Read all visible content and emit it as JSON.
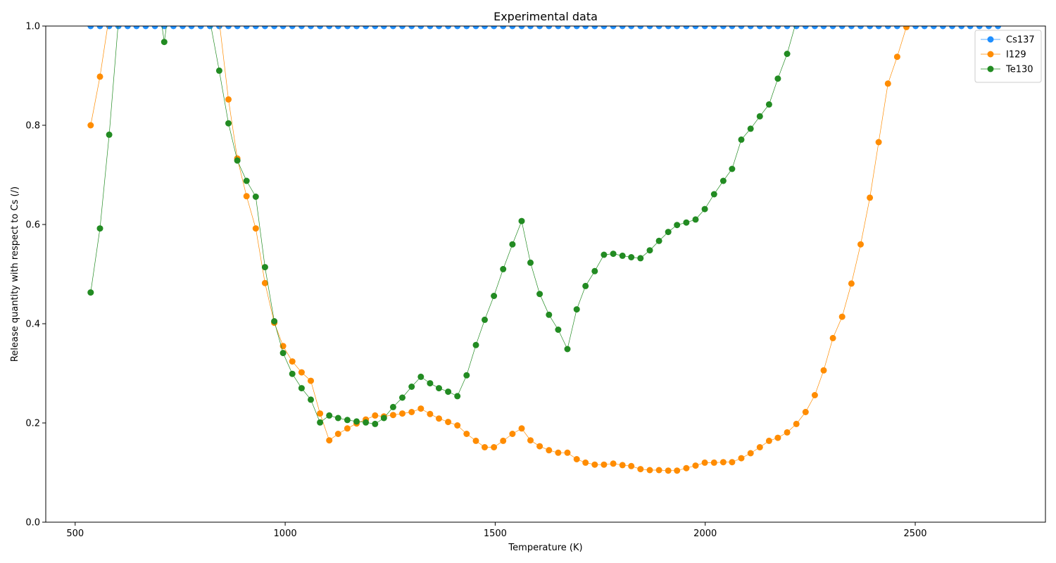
{
  "chart_data": {
    "type": "line",
    "title": "Experimental data",
    "xlabel": "Temperature (K)",
    "ylabel": "Release quantity with respect to Cs (/)",
    "xlim": [
      430,
      2810
    ],
    "ylim": [
      0,
      1.0
    ],
    "x_ticks": [
      500,
      1000,
      1500,
      2000,
      2500
    ],
    "x_tick_labels": [
      "500",
      "1000",
      "1500",
      "2000",
      "2500"
    ],
    "y_ticks": [
      0,
      0.2,
      0.4,
      0.6,
      0.8,
      1.0
    ],
    "y_tick_labels": [
      "0.0",
      "0.2",
      "0.4",
      "0.6",
      "0.8",
      "1.0"
    ],
    "grid": false,
    "legend_position": "top-right",
    "series": [
      {
        "name": "Cs137",
        "color": "#1f8fff",
        "x": [
          537,
          559,
          581,
          603,
          625,
          646,
          668,
          690,
          712,
          734,
          756,
          777,
          799,
          821,
          843,
          865,
          886,
          908,
          930,
          952,
          974,
          995,
          1017,
          1039,
          1061,
          1083,
          1105,
          1126,
          1148,
          1170,
          1192,
          1214,
          1235,
          1257,
          1279,
          1301,
          1323,
          1345,
          1366,
          1388,
          1410,
          1432,
          1454,
          1475,
          1497,
          1519,
          1541,
          1563,
          1584,
          1606,
          1628,
          1650,
          1672,
          1694,
          1715,
          1737,
          1759,
          1781,
          1803,
          1824,
          1846,
          1868,
          1890,
          1912,
          1933,
          1955,
          1977,
          1999,
          2021,
          2043,
          2064,
          2086,
          2108,
          2130,
          2152,
          2173,
          2195,
          2217,
          2239,
          2261,
          2282,
          2304,
          2326,
          2348,
          2370,
          2392,
          2413,
          2435,
          2457,
          2479,
          2501,
          2522,
          2544,
          2566,
          2588,
          2610,
          2631,
          2653,
          2675,
          2697
        ],
        "y": [
          1.0,
          1.0,
          1.0,
          1.0,
          1.0,
          1.0,
          1.0,
          1.0,
          1.0,
          1.0,
          1.0,
          1.0,
          1.0,
          1.0,
          1.0,
          1.0,
          1.0,
          1.0,
          1.0,
          1.0,
          1.0,
          1.0,
          1.0,
          1.0,
          1.0,
          1.0,
          1.0,
          1.0,
          1.0,
          1.0,
          1.0,
          1.0,
          1.0,
          1.0,
          1.0,
          1.0,
          1.0,
          1.0,
          1.0,
          1.0,
          1.0,
          1.0,
          1.0,
          1.0,
          1.0,
          1.0,
          1.0,
          1.0,
          1.0,
          1.0,
          1.0,
          1.0,
          1.0,
          1.0,
          1.0,
          1.0,
          1.0,
          1.0,
          1.0,
          1.0,
          1.0,
          1.0,
          1.0,
          1.0,
          1.0,
          1.0,
          1.0,
          1.0,
          1.0,
          1.0,
          1.0,
          1.0,
          1.0,
          1.0,
          1.0,
          1.0,
          1.0,
          1.0,
          1.0,
          1.0,
          1.0,
          1.0,
          1.0,
          1.0,
          1.0,
          1.0,
          1.0,
          1.0,
          1.0,
          1.0,
          1.0,
          1.0,
          1.0,
          1.0,
          1.0,
          1.0,
          1.0,
          1.0,
          1.0,
          1.0
        ]
      },
      {
        "name": "I129",
        "color": "#ff8c00",
        "x": [
          537,
          559,
          581,
          603,
          625,
          646,
          668,
          690,
          712,
          734,
          756,
          777,
          799,
          821,
          843,
          865,
          886,
          908,
          930,
          952,
          974,
          995,
          1017,
          1039,
          1061,
          1083,
          1105,
          1126,
          1148,
          1170,
          1192,
          1214,
          1235,
          1257,
          1279,
          1301,
          1323,
          1345,
          1366,
          1388,
          1410,
          1432,
          1454,
          1475,
          1497,
          1519,
          1541,
          1563,
          1584,
          1606,
          1628,
          1650,
          1672,
          1694,
          1715,
          1737,
          1759,
          1781,
          1803,
          1824,
          1846,
          1868,
          1890,
          1912,
          1933,
          1955,
          1977,
          1999,
          2021,
          2043,
          2064,
          2086,
          2108,
          2130,
          2152,
          2173,
          2195,
          2217,
          2239,
          2261,
          2282,
          2304,
          2326,
          2348,
          2370,
          2392,
          2413,
          2435,
          2457,
          2479
        ],
        "y": [
          0.8,
          0.898,
          1.02,
          1.1,
          1.1,
          1.1,
          1.1,
          1.1,
          1.1,
          1.1,
          1.1,
          1.1,
          1.1,
          1.1,
          1.01,
          0.852,
          0.733,
          0.657,
          0.592,
          0.482,
          0.402,
          0.355,
          0.324,
          0.302,
          0.285,
          0.219,
          0.165,
          0.178,
          0.189,
          0.199,
          0.207,
          0.215,
          0.213,
          0.216,
          0.219,
          0.222,
          0.229,
          0.218,
          0.209,
          0.202,
          0.195,
          0.178,
          0.164,
          0.151,
          0.151,
          0.164,
          0.178,
          0.189,
          0.165,
          0.153,
          0.145,
          0.14,
          0.14,
          0.127,
          0.12,
          0.116,
          0.116,
          0.118,
          0.115,
          0.113,
          0.107,
          0.105,
          0.105,
          0.104,
          0.104,
          0.109,
          0.114,
          0.12,
          0.12,
          0.121,
          0.121,
          0.129,
          0.139,
          0.151,
          0.164,
          0.17,
          0.181,
          0.198,
          0.222,
          0.256,
          0.306,
          0.371,
          0.414,
          0.481,
          0.56,
          0.654,
          0.766,
          0.884,
          0.938,
          0.998
        ]
      },
      {
        "name": "Te130",
        "color": "#228b22",
        "x": [
          537,
          559,
          581,
          603,
          625,
          646,
          668,
          690,
          712,
          734,
          756,
          777,
          799,
          821,
          843,
          865,
          886,
          908,
          930,
          952,
          974,
          995,
          1017,
          1039,
          1061,
          1083,
          1105,
          1126,
          1148,
          1170,
          1192,
          1214,
          1235,
          1257,
          1279,
          1301,
          1323,
          1345,
          1366,
          1388,
          1410,
          1432,
          1454,
          1475,
          1497,
          1519,
          1541,
          1563,
          1584,
          1606,
          1628,
          1650,
          1672,
          1694,
          1715,
          1737,
          1759,
          1781,
          1803,
          1824,
          1846,
          1868,
          1890,
          1912,
          1933,
          1955,
          1977,
          1999,
          2021,
          2043,
          2064,
          2086,
          2108,
          2130,
          2152,
          2173,
          2195,
          2217
        ],
        "y": [
          0.463,
          0.592,
          0.781,
          1.01,
          1.1,
          1.1,
          1.1,
          1.1,
          0.968,
          1.1,
          1.1,
          1.1,
          1.1,
          1.01,
          0.91,
          0.804,
          0.729,
          0.688,
          0.656,
          0.514,
          0.405,
          0.341,
          0.299,
          0.27,
          0.247,
          0.201,
          0.215,
          0.21,
          0.206,
          0.203,
          0.201,
          0.198,
          0.21,
          0.232,
          0.251,
          0.273,
          0.293,
          0.28,
          0.27,
          0.263,
          0.254,
          0.296,
          0.357,
          0.408,
          0.456,
          0.51,
          0.56,
          0.607,
          0.523,
          0.46,
          0.418,
          0.388,
          0.349,
          0.429,
          0.476,
          0.506,
          0.539,
          0.541,
          0.537,
          0.534,
          0.532,
          0.548,
          0.567,
          0.585,
          0.599,
          0.604,
          0.61,
          0.631,
          0.661,
          0.688,
          0.712,
          0.771,
          0.793,
          0.818,
          0.842,
          0.894,
          0.944,
          1.01
        ]
      }
    ]
  }
}
